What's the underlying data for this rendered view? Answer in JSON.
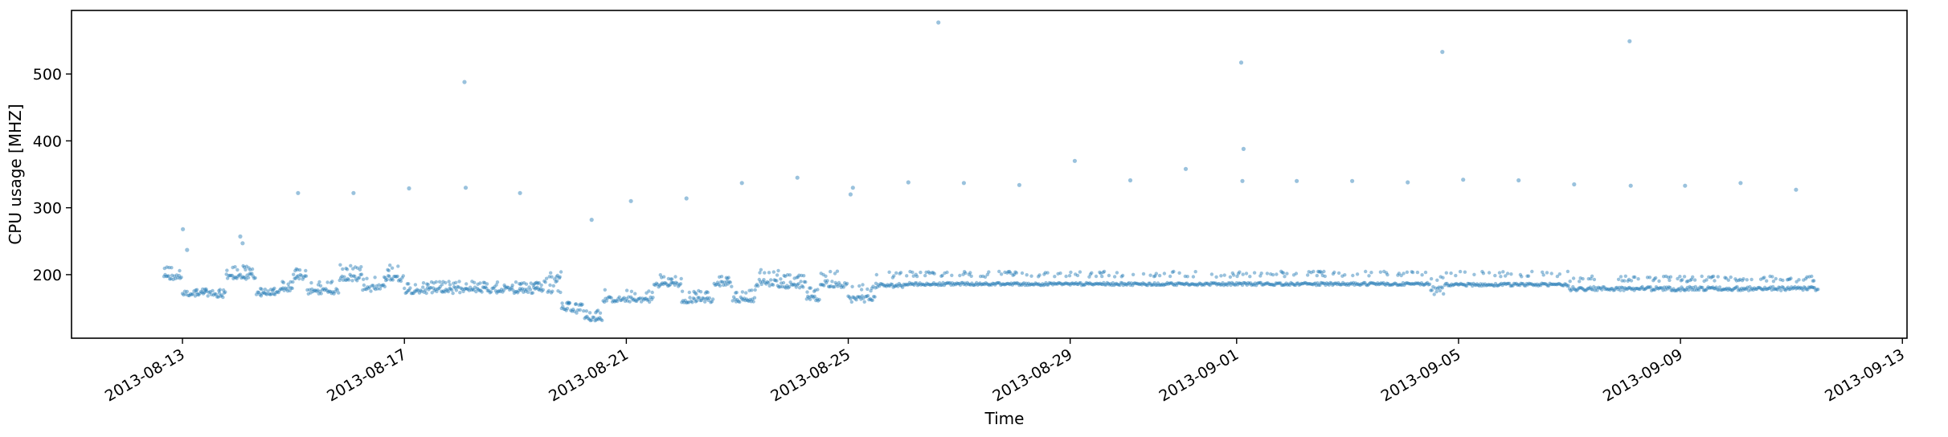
{
  "chart_data": {
    "type": "scatter",
    "title": "",
    "xlabel": "Time",
    "ylabel": "CPU usage [MHZ]",
    "xlim": [
      "2013-08-11T00:00",
      "2013-09-13T02:00"
    ],
    "ylim": [
      105,
      595
    ],
    "x_ticks": [
      "2013-08-13",
      "2013-08-17",
      "2013-08-21",
      "2013-08-25",
      "2013-08-29",
      "2013-09-01",
      "2013-09-05",
      "2013-09-09",
      "2013-09-13"
    ],
    "y_ticks": [
      200,
      300,
      400,
      500
    ],
    "grid": false,
    "marker_color": "#1f77b4",
    "marker_alpha": 0.45,
    "outliers": [
      {
        "x": "2013-08-13T00:10",
        "y": 268
      },
      {
        "x": "2013-08-13T02:00",
        "y": 237
      },
      {
        "x": "2013-08-14T01:00",
        "y": 257
      },
      {
        "x": "2013-08-14T02:00",
        "y": 247
      },
      {
        "x": "2013-08-15T02:00",
        "y": 322
      },
      {
        "x": "2013-08-16T02:00",
        "y": 322
      },
      {
        "x": "2013-08-17T02:00",
        "y": 329
      },
      {
        "x": "2013-08-18T02:00",
        "y": 488
      },
      {
        "x": "2013-08-18T02:30",
        "y": 330
      },
      {
        "x": "2013-08-19T02:00",
        "y": 322
      },
      {
        "x": "2013-08-20T09:00",
        "y": 282
      },
      {
        "x": "2013-08-21T02:00",
        "y": 310
      },
      {
        "x": "2013-08-22T02:00",
        "y": 314
      },
      {
        "x": "2013-08-23T02:00",
        "y": 337
      },
      {
        "x": "2013-08-24T02:00",
        "y": 345
      },
      {
        "x": "2013-08-25T02:00",
        "y": 330
      },
      {
        "x": "2013-08-25T01:00",
        "y": 320
      },
      {
        "x": "2013-08-26T02:00",
        "y": 338
      },
      {
        "x": "2013-08-26T15:00",
        "y": 577
      },
      {
        "x": "2013-08-27T02:00",
        "y": 337
      },
      {
        "x": "2013-08-28T02:00",
        "y": 334
      },
      {
        "x": "2013-08-29T02:00",
        "y": 370
      },
      {
        "x": "2013-08-30T02:00",
        "y": 341
      },
      {
        "x": "2013-08-31T02:00",
        "y": 358
      },
      {
        "x": "2013-09-01T02:00",
        "y": 517
      },
      {
        "x": "2013-09-01T03:00",
        "y": 388
      },
      {
        "x": "2013-09-01T02:30",
        "y": 340
      },
      {
        "x": "2013-09-02T02:00",
        "y": 340
      },
      {
        "x": "2013-09-03T02:00",
        "y": 340
      },
      {
        "x": "2013-09-04T02:00",
        "y": 338
      },
      {
        "x": "2013-09-04T17:00",
        "y": 533
      },
      {
        "x": "2013-09-05T02:00",
        "y": 342
      },
      {
        "x": "2013-09-06T02:00",
        "y": 341
      },
      {
        "x": "2013-09-07T02:00",
        "y": 335
      },
      {
        "x": "2013-09-08T02:00",
        "y": 549
      },
      {
        "x": "2013-09-08T02:30",
        "y": 333
      },
      {
        "x": "2013-09-09T02:00",
        "y": 333
      },
      {
        "x": "2013-09-10T02:00",
        "y": 337
      },
      {
        "x": "2013-09-11T02:00",
        "y": 327
      }
    ],
    "baseline_segments": [
      {
        "start": "2013-08-12T16:00",
        "end": "2013-08-13T00:00",
        "base": 196,
        "spread": 4,
        "upper": 212
      },
      {
        "start": "2013-08-13T00:00",
        "end": "2013-08-13T14:00",
        "base": 172,
        "spread": 4,
        "upper": 180
      },
      {
        "start": "2013-08-13T14:00",
        "end": "2013-08-13T19:00",
        "base": 170,
        "spread": 4,
        "upper": 178
      },
      {
        "start": "2013-08-13T19:00",
        "end": "2013-08-14T08:00",
        "base": 197,
        "spread": 5,
        "upper": 214
      },
      {
        "start": "2013-08-14T08:00",
        "end": "2013-08-14T18:00",
        "base": 172,
        "spread": 4,
        "upper": 180
      },
      {
        "start": "2013-08-14T18:00",
        "end": "2013-08-15T00:00",
        "base": 178,
        "spread": 4,
        "upper": 190
      },
      {
        "start": "2013-08-15T00:00",
        "end": "2013-08-15T06:00",
        "base": 197,
        "spread": 5,
        "upper": 212
      },
      {
        "start": "2013-08-15T06:00",
        "end": "2013-08-15T20:00",
        "base": 175,
        "spread": 4,
        "upper": 190
      },
      {
        "start": "2013-08-15T20:00",
        "end": "2013-08-16T06:00",
        "base": 196,
        "spread": 5,
        "upper": 216
      },
      {
        "start": "2013-08-16T06:00",
        "end": "2013-08-16T16:00",
        "base": 180,
        "spread": 5,
        "upper": 200
      },
      {
        "start": "2013-08-16T16:00",
        "end": "2013-08-17T00:00",
        "base": 195,
        "spread": 5,
        "upper": 215
      },
      {
        "start": "2013-08-17T00:00",
        "end": "2013-08-19T12:00",
        "base": 177,
        "spread": 5,
        "upper": 190
      },
      {
        "start": "2013-08-19T12:00",
        "end": "2013-08-19T20:00",
        "base": 185,
        "spread": 12,
        "upper": 205
      },
      {
        "start": "2013-08-19T20:00",
        "end": "2013-08-20T06:00",
        "base": 150,
        "spread": 8,
        "upper": 160
      },
      {
        "start": "2013-08-20T06:00",
        "end": "2013-08-20T14:00",
        "base": 135,
        "spread": 4,
        "upper": 148
      },
      {
        "start": "2013-08-20T14:00",
        "end": "2013-08-21T12:00",
        "base": 163,
        "spread": 4,
        "upper": 178
      },
      {
        "start": "2013-08-21T12:00",
        "end": "2013-08-22T00:00",
        "base": 185,
        "spread": 4,
        "upper": 200
      },
      {
        "start": "2013-08-22T00:00",
        "end": "2013-08-22T14:00",
        "base": 162,
        "spread": 4,
        "upper": 176
      },
      {
        "start": "2013-08-22T14:00",
        "end": "2013-08-22T22:00",
        "base": 186,
        "spread": 4,
        "upper": 200
      },
      {
        "start": "2013-08-22T22:00",
        "end": "2013-08-23T08:00",
        "base": 163,
        "spread": 4,
        "upper": 180
      },
      {
        "start": "2013-08-23T08:00",
        "end": "2013-08-23T18:00",
        "base": 188,
        "spread": 5,
        "upper": 208
      },
      {
        "start": "2013-08-23T18:00",
        "end": "2013-08-24T06:00",
        "base": 185,
        "spread": 5,
        "upper": 200
      },
      {
        "start": "2013-08-24T06:00",
        "end": "2013-08-24T12:00",
        "base": 164,
        "spread": 4,
        "upper": 180
      },
      {
        "start": "2013-08-24T12:00",
        "end": "2013-08-25T00:00",
        "base": 186,
        "spread": 5,
        "upper": 205
      },
      {
        "start": "2013-08-25T00:00",
        "end": "2013-08-25T12:00",
        "base": 164,
        "spread": 5,
        "upper": 185
      },
      {
        "start": "2013-08-25T12:00",
        "end": "2013-08-26T00:00",
        "base": 184,
        "spread": 3,
        "upper": 205
      },
      {
        "start": "2013-08-26T00:00",
        "end": "2013-09-04T12:00",
        "base": 186,
        "spread": 2,
        "upper": 205
      },
      {
        "start": "2013-09-04T12:00",
        "end": "2013-09-04T18:00",
        "base": 176,
        "spread": 6,
        "upper": 200
      },
      {
        "start": "2013-09-04T18:00",
        "end": "2013-09-07T00:00",
        "base": 185,
        "spread": 2,
        "upper": 205
      },
      {
        "start": "2013-09-07T00:00",
        "end": "2013-09-11T12:00",
        "base": 179,
        "spread": 3,
        "upper": 198
      }
    ]
  }
}
